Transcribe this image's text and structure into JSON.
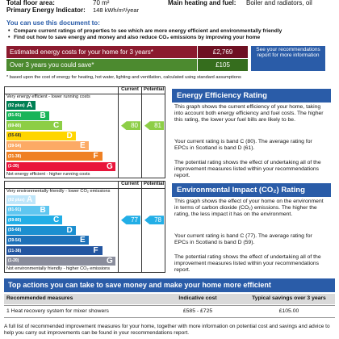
{
  "header": {
    "rows": [
      {
        "label": "Total floor area:",
        "value": "70 m²"
      },
      {
        "label": "Primary Energy Indicator:",
        "value": "148 kWh/m²/year"
      }
    ],
    "heating": {
      "label": "Main heating and fuel:",
      "value": "Boiler and radiators, oil"
    }
  },
  "intro": {
    "title": "You can use this document to:",
    "bullets": [
      "Compare current ratings of properties to see which are more energy efficient and environmentally friendly",
      "Find out how to save energy and money and also reduce CO₂ emissions by improving your home"
    ]
  },
  "costs": {
    "rows": [
      {
        "label": "Estimated energy costs for your home for 3 years*",
        "value": "£2,769"
      },
      {
        "label": "Over 3 years you could save*",
        "value": "£105"
      }
    ],
    "link": "See your recommendations report for more information",
    "note": "* based upon the cost of energy for heating, hot water, lighting and ventilation, calculated using standard assumptions"
  },
  "ee": {
    "title": "Energy Efficiency Rating",
    "top_label": "Very energy efficient - lower running costs",
    "bottom_label": "Not energy efficient - higher running costs",
    "columns": [
      "Current",
      "Potential"
    ],
    "bands": [
      {
        "range": "(92 plus)",
        "letter": "A"
      },
      {
        "range": "(81-91)",
        "letter": "B"
      },
      {
        "range": "(69-80)",
        "letter": "C"
      },
      {
        "range": "(55-68)",
        "letter": "D"
      },
      {
        "range": "(39-54)",
        "letter": "E"
      },
      {
        "range": "(21-38)",
        "letter": "F"
      },
      {
        "range": "(1-20)",
        "letter": "G"
      }
    ],
    "current": 80,
    "potential": 81,
    "paragraphs": [
      "This graph shows the current efficiency of your home, taking into account both energy efficiency and fuel costs. The higher this rating, the lower your fuel bills are likely to be.",
      "Your current rating is band C (80). The average rating for EPCs in Scotland is band D (61).",
      "The potential rating shows the effect of undertaking all of the improvement measures listed within your recommendations report."
    ]
  },
  "ei": {
    "title": "Environmental Impact (CO₂) Rating",
    "top_label": "Very environmentally friendly - lower CO₂ emissions",
    "bottom_label": "Not environmentally friendly - higher CO₂ emissions",
    "columns": [
      "Current",
      "Potential"
    ],
    "bands": [
      {
        "range": "(92 plus)",
        "letter": "A"
      },
      {
        "range": "(81-91)",
        "letter": "B"
      },
      {
        "range": "(69-80)",
        "letter": "C"
      },
      {
        "range": "(55-68)",
        "letter": "D"
      },
      {
        "range": "(39-54)",
        "letter": "E"
      },
      {
        "range": "(21-38)",
        "letter": "F"
      },
      {
        "range": "(1-20)",
        "letter": "G"
      }
    ],
    "current": 77,
    "potential": 78,
    "paragraphs": [
      "This graph shows the effect of your home on the environment in terms of carbon dioxide (CO₂) emissions. The higher the rating, the less impact it has on the environment.",
      "Your current rating is band C (77). The average rating for EPCs in Scotland is band D (59).",
      "The potential rating shows the effect of undertaking all of the improvement measures listed within your recommendations report."
    ]
  },
  "actions": {
    "title": "Top actions you can take to save money and make your home more efficient",
    "columns": [
      "Recommended measures",
      "Indicative cost",
      "Typical savings over 3 years"
    ],
    "rows": [
      [
        "1 Heat recovery system for mixer showers",
        "£585 - £725",
        "£105.00"
      ]
    ],
    "footer": "A full list of recommended improvement measures for your home, together with more information on potential cost and savings and advice to help you carry out improvements can be found in your recommendations report."
  }
}
